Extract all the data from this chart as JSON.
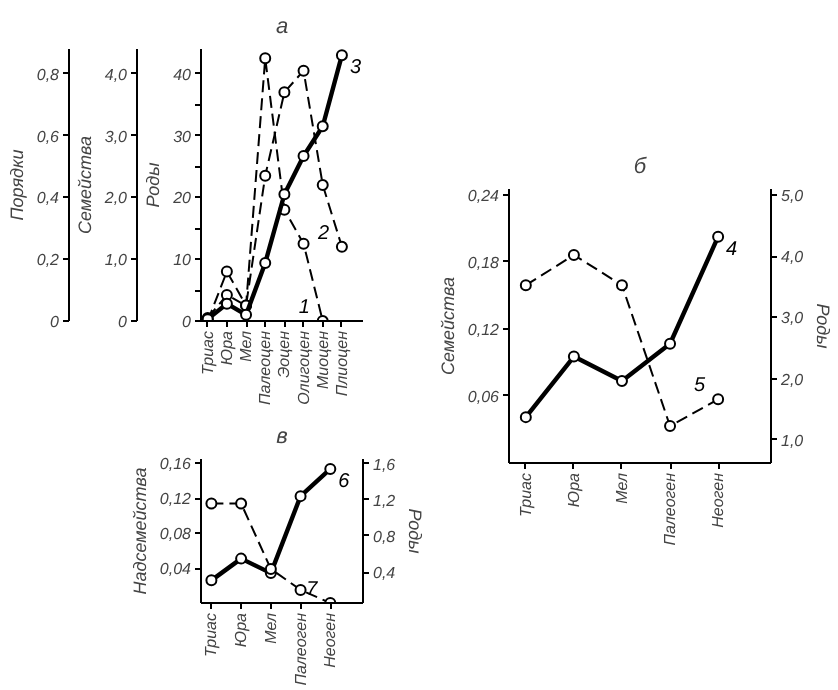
{
  "chart_data": [
    {
      "type": "line",
      "title": "а",
      "categories": [
        "Триас",
        "Юра",
        "Мел",
        "Палеоцен",
        "Эоцен",
        "Олигоцен",
        "Миоцен",
        "Плиоцен"
      ],
      "ylabel": "Роды",
      "y2label": "Семейства",
      "y3label": "Порядки",
      "ylim": [
        0,
        44
      ],
      "yticks": [
        0,
        {
          "value": 5,
          "label": null
        },
        10,
        {
          "value": 15,
          "label": null
        },
        20,
        {
          "value": 25,
          "label": null
        },
        30,
        {
          "value": 35,
          "label": null
        },
        40
      ],
      "y2lim": [
        0,
        4.4
      ],
      "y2ticks": [
        0,
        {
          "value": 1,
          "label": "1,0"
        },
        {
          "value": 2,
          "label": "2,0"
        },
        {
          "value": 3,
          "label": "3,0"
        },
        {
          "value": 4,
          "label": "4,0"
        }
      ],
      "y3lim": [
        0,
        0.88
      ],
      "y3ticks": [
        0,
        {
          "value": 0.2,
          "label": "0,2"
        },
        {
          "value": 0.4,
          "label": "0,4"
        },
        {
          "value": 0.6,
          "label": "0,6"
        },
        {
          "value": 0.8,
          "label": "0,8"
        }
      ],
      "marker": "circle",
      "grid": false,
      "legend": false,
      "series": [
        {
          "name": "1",
          "color": "#000000",
          "axis": "y3",
          "line_style": "dashed",
          "values": [
            0.0,
            0.16,
            0.05,
            0.85,
            0.36,
            0.25,
            0.0,
            null
          ]
        },
        {
          "name": "2",
          "color": "#000000",
          "axis": "y2",
          "line_style": "dashed",
          "values": [
            0.05,
            0.42,
            0.25,
            2.35,
            3.7,
            4.05,
            2.2,
            1.2
          ]
        },
        {
          "name": "3",
          "color": "#000000",
          "axis": "y",
          "line_style": "solid",
          "values": [
            0.3,
            2.8,
            1.0,
            9.4,
            20.5,
            26.7,
            31.5,
            43
          ]
        }
      ]
    },
    {
      "type": "line",
      "title": "б",
      "categories": [
        "Триас",
        "Юра",
        "Мел",
        "Палеоген",
        "Неоген"
      ],
      "ylabel": "Семейства",
      "y2label": "Роды",
      "ylim": [
        0,
        0.245
      ],
      "yticks": [
        {
          "value": 0.06,
          "label": "0,06"
        },
        {
          "value": 0.12,
          "label": "0,12"
        },
        {
          "value": 0.18,
          "label": "0,18"
        },
        {
          "value": 0.24,
          "label": "0,24"
        }
      ],
      "y2lim": [
        0.62,
        5.1
      ],
      "y2ticks": [
        {
          "value": 1,
          "label": "1,0"
        },
        {
          "value": 2,
          "label": "2,0"
        },
        {
          "value": 3,
          "label": "3,0"
        },
        {
          "value": 4,
          "label": "4,0"
        },
        {
          "value": 5,
          "label": "5,0"
        }
      ],
      "marker": "circle",
      "grid": false,
      "legend": false,
      "series": [
        {
          "name": "4",
          "color": "#000000",
          "axis": "y2",
          "line_style": "solid",
          "values": [
            1.37,
            2.36,
            1.96,
            2.57,
            4.32
          ]
        },
        {
          "name": "5",
          "color": "#000000",
          "axis": "y",
          "line_style": "dashed",
          "values": [
            0.159,
            0.186,
            0.159,
            0.033,
            0.057
          ]
        }
      ]
    },
    {
      "type": "line",
      "title": "в",
      "categories": [
        "Триас",
        "Юра",
        "Мел",
        "Палеоген",
        "Неоген"
      ],
      "ylabel": "Надсемейства",
      "y2label": "Роды",
      "ylim": [
        0,
        0.165
      ],
      "yticks": [
        {
          "value": 0.04,
          "label": "0,04"
        },
        {
          "value": 0.08,
          "label": "0,08"
        },
        {
          "value": 0.12,
          "label": "0,12"
        },
        {
          "value": 0.16,
          "label": "0,16"
        }
      ],
      "y2lim": [
        0.06,
        1.65
      ],
      "y2ticks": [
        {
          "value": 0.4,
          "label": "0,4"
        },
        {
          "value": 0.8,
          "label": "0,8"
        },
        {
          "value": 1.2,
          "label": "1,2"
        },
        {
          "value": 1.6,
          "label": "1,6"
        }
      ],
      "marker": "circle",
      "grid": false,
      "legend": false,
      "series": [
        {
          "name": "6",
          "color": "#000000",
          "axis": "y2",
          "line_style": "solid",
          "values": [
            0.31,
            0.55,
            0.39,
            1.24,
            1.54
          ]
        },
        {
          "name": "7",
          "color": "#000000",
          "axis": "y",
          "line_style": "dashed",
          "values": [
            0.114,
            0.114,
            0.039,
            0.015,
            0.0
          ]
        }
      ]
    }
  ]
}
